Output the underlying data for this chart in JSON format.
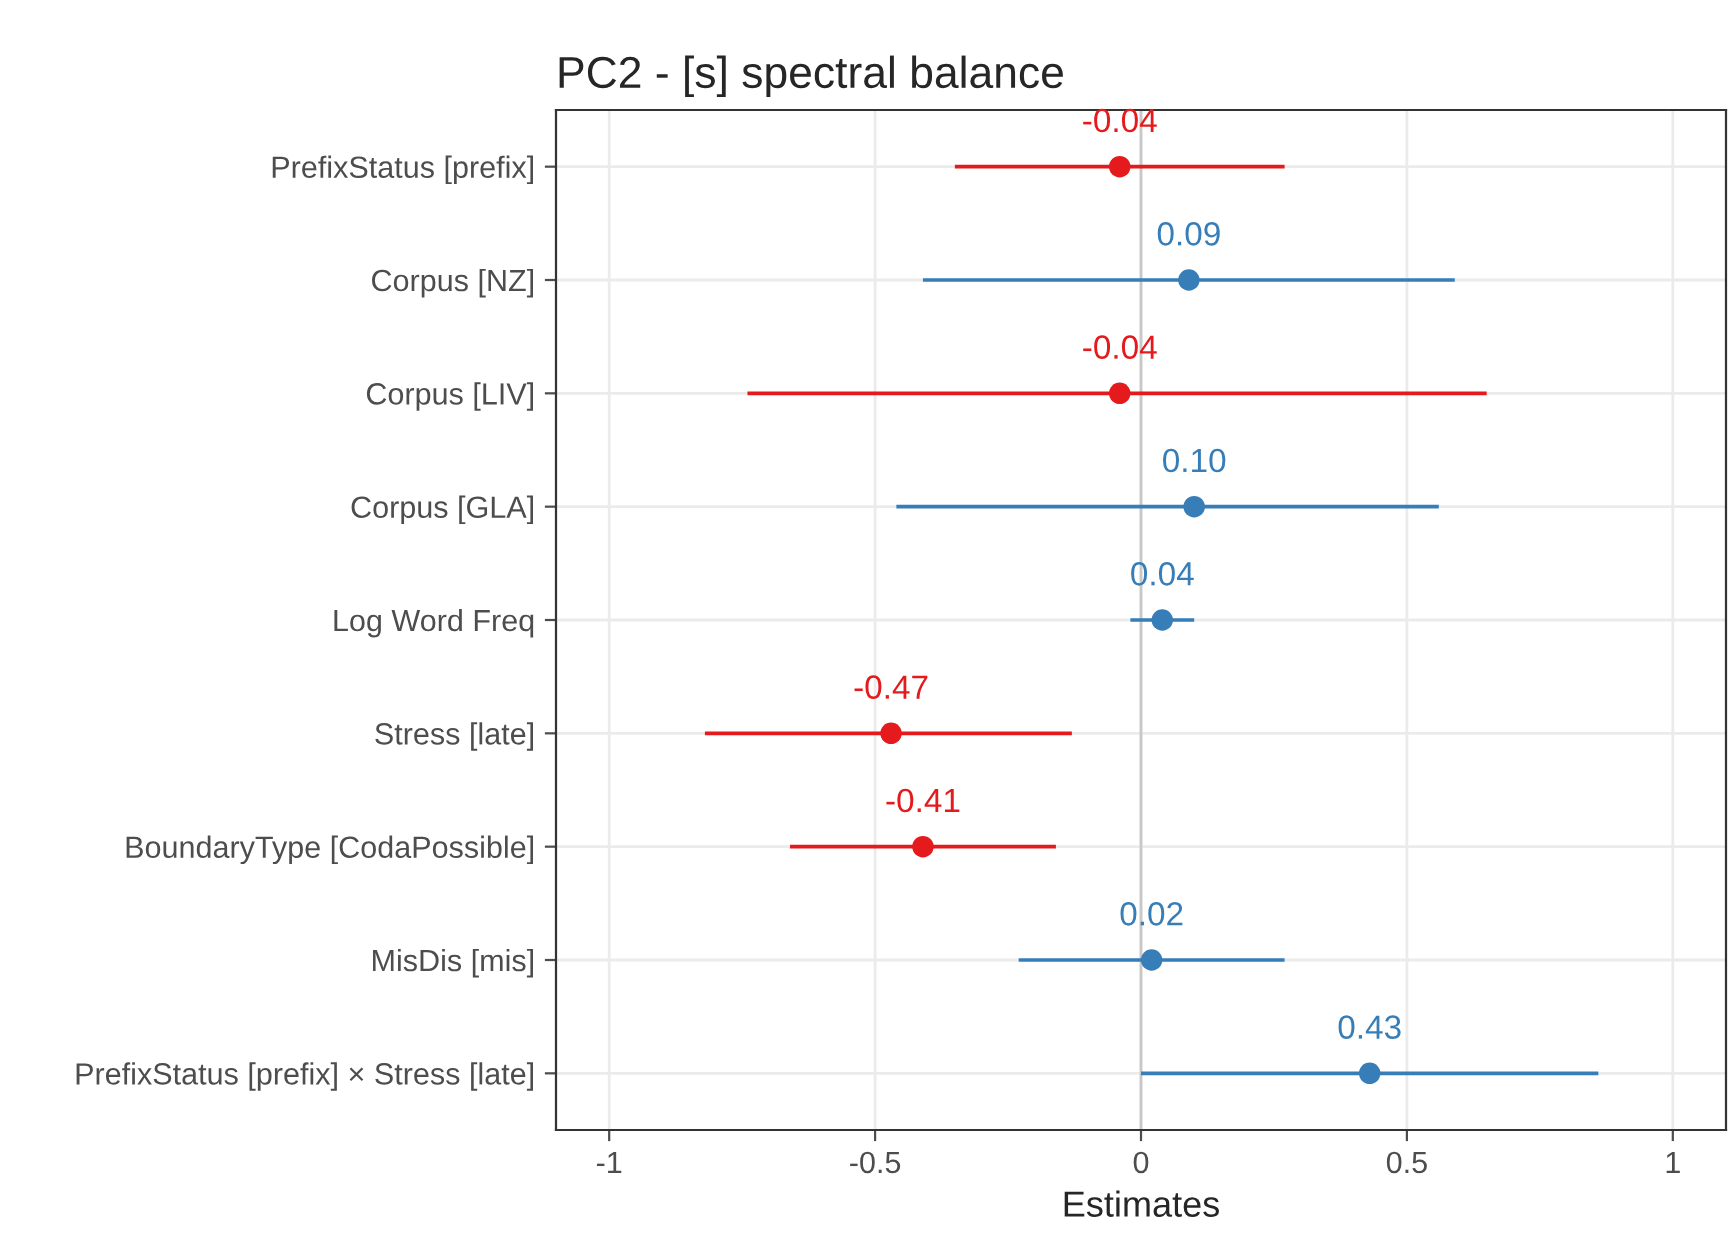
{
  "chart_data": {
    "type": "scatter",
    "orientation": "horizontal",
    "title": "PC2 - [s] spectral balance",
    "xlabel": "Estimates",
    "categories": [
      "PrefixStatus [prefix]",
      "Corpus [NZ]",
      "Corpus [LIV]",
      "Corpus [GLA]",
      "Log Word Freq",
      "Stress [late]",
      "BoundaryType [CodaPossible]",
      "MisDis [mis]",
      "PrefixStatus [prefix] × Stress [late]"
    ],
    "values": [
      -0.04,
      0.09,
      -0.04,
      0.1,
      0.04,
      -0.47,
      -0.41,
      0.02,
      0.43
    ],
    "value_labels": [
      "-0.04",
      "0.09",
      "-0.04",
      "0.10",
      "0.04",
      "-0.47",
      "-0.41",
      "0.02",
      "0.43"
    ],
    "errors": [
      [
        -0.35,
        0.27
      ],
      [
        -0.41,
        0.59
      ],
      [
        -0.74,
        0.65
      ],
      [
        -0.46,
        0.56
      ],
      [
        -0.02,
        0.1
      ],
      [
        -0.82,
        -0.13
      ],
      [
        -0.66,
        -0.16
      ],
      [
        -0.23,
        0.27
      ],
      [
        0.0,
        0.86
      ]
    ],
    "colors": [
      "#e41a1c",
      "#377eb8",
      "#e41a1c",
      "#377eb8",
      "#377eb8",
      "#e41a1c",
      "#e41a1c",
      "#377eb8",
      "#377eb8"
    ],
    "xlim": [
      -1.1,
      1.1
    ],
    "xticks": [
      -1,
      -0.5,
      0,
      0.5,
      1
    ],
    "ref_lines": [
      {
        "axis": "x",
        "value": 0,
        "color": "#c8c8c8"
      }
    ],
    "grid": true,
    "marker": "circle"
  }
}
